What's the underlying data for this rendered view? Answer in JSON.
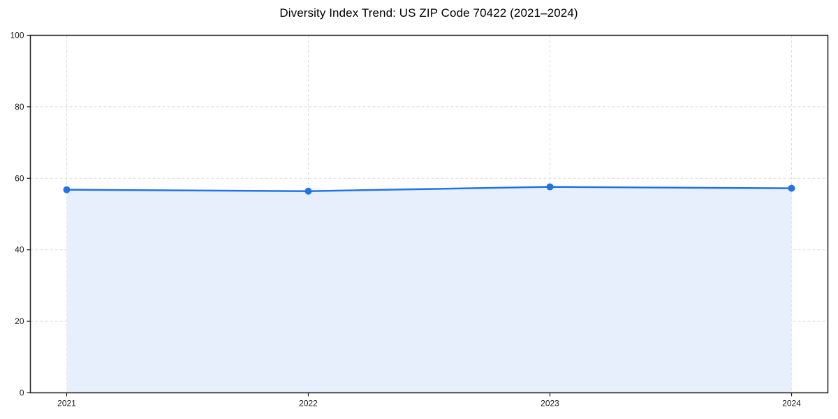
{
  "page": {
    "background": "#ffffff"
  },
  "chart_data": {
    "type": "line",
    "title": "Diversity Index Trend: US ZIP Code 70422 (2021–2024)",
    "categories": [
      "2021",
      "2022",
      "2023",
      "2024"
    ],
    "series": [
      {
        "name": "Diversity Index",
        "values": [
          56.8,
          56.4,
          57.6,
          57.2
        ]
      }
    ],
    "xlabel": "",
    "ylabel": "",
    "ylim": [
      0,
      100
    ],
    "yticks": [
      0,
      20,
      40,
      60,
      80,
      100
    ],
    "grid": "dashed",
    "legend": "none",
    "area_fill": true,
    "marker": "circle",
    "colors": {
      "line": "#2173e8",
      "marker": "#2173e8",
      "area_fill": "#e7effc",
      "gridline": "#dcdcdc",
      "axis": "#1a1a1a",
      "tick_label": "#1a1a1a",
      "title": "#000000",
      "background": "#ffffff"
    }
  }
}
